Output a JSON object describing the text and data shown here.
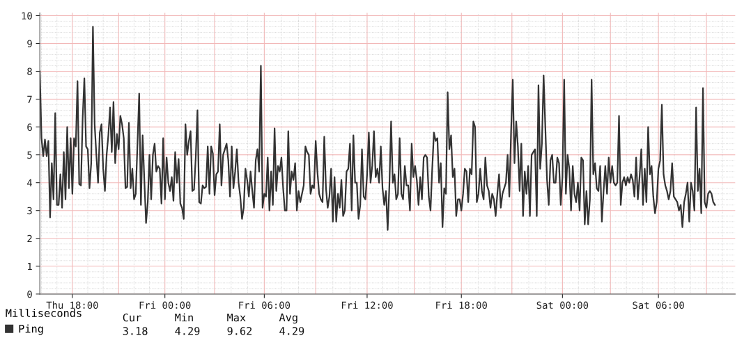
{
  "chart_data": {
    "type": "line",
    "legend_title": "Milliseconds",
    "categories": [
      null,
      null,
      null,
      null,
      null,
      null,
      null,
      null,
      null,
      null,
      null,
      null,
      null,
      null,
      null,
      null,
      null,
      null,
      null,
      "Thu 18:00",
      null,
      null,
      null,
      null,
      null,
      null,
      null,
      null,
      null,
      null,
      null,
      null,
      null,
      null,
      null,
      null,
      null,
      null,
      null,
      null,
      null,
      null,
      null,
      null,
      null,
      null,
      null,
      null,
      null,
      null,
      null,
      null,
      null,
      null,
      null,
      null,
      null,
      null,
      null,
      null,
      null,
      null,
      null,
      null,
      null,
      null,
      null,
      null,
      null,
      null,
      null,
      null,
      null,
      "Fri 00:00",
      null,
      null,
      null,
      null,
      null,
      null,
      null,
      null,
      null,
      null,
      null,
      null,
      null,
      null,
      null,
      null,
      null,
      null,
      null,
      null,
      null,
      null,
      null,
      null,
      null,
      null,
      null,
      null,
      null,
      null,
      null,
      null,
      null,
      null,
      null,
      null,
      null,
      null,
      null,
      null,
      null,
      null,
      null,
      null,
      null,
      null,
      null,
      null,
      null,
      null,
      null,
      null,
      null,
      null,
      null,
      null,
      null,
      "Fri 06:00",
      null,
      null,
      null,
      null,
      null,
      null,
      null,
      null,
      null,
      null,
      null,
      null,
      null,
      null,
      null,
      null,
      null,
      null,
      null,
      null,
      null,
      null,
      null,
      null,
      null,
      null,
      null,
      null,
      null,
      null,
      null,
      null,
      null,
      null,
      null,
      null,
      null,
      null,
      null,
      null,
      null,
      null,
      null,
      null,
      null,
      null,
      null,
      null,
      null,
      null,
      null,
      null,
      null,
      null,
      null,
      null,
      null,
      null,
      null,
      "Fri 12:00",
      null,
      null,
      null,
      null,
      null,
      null,
      null,
      null,
      null,
      null,
      null,
      null,
      null,
      null,
      null,
      null,
      null,
      null,
      null,
      null,
      null,
      null,
      null,
      null,
      null,
      null,
      null,
      null,
      null,
      null,
      null,
      null,
      null,
      null,
      null,
      null,
      null,
      null,
      null,
      null,
      null,
      null,
      null,
      null,
      null,
      null,
      null,
      null,
      null,
      null,
      null,
      null,
      null,
      null,
      "Fri 18:00",
      null,
      null,
      null,
      null,
      null,
      null,
      null,
      null,
      null,
      null,
      null,
      null,
      null,
      null,
      null,
      null,
      null,
      null,
      null,
      null,
      null,
      null,
      null,
      null,
      null,
      null,
      null,
      null,
      null,
      null,
      null,
      null,
      null,
      null,
      null,
      null,
      null,
      null,
      null,
      null,
      null,
      null,
      null,
      null,
      null,
      null,
      null,
      null,
      null,
      null,
      null,
      null,
      null,
      null,
      null,
      null,
      null,
      null,
      "Sat 00:00",
      null,
      null,
      null,
      null,
      null,
      null,
      null,
      null,
      null,
      null,
      null,
      null,
      null,
      null,
      null,
      null,
      null,
      null,
      null,
      null,
      null,
      null,
      null,
      null,
      null,
      null,
      null,
      null,
      null,
      null,
      null,
      null,
      null,
      null,
      null,
      null,
      null,
      null,
      null,
      null,
      null,
      null,
      null,
      null,
      null,
      null,
      null,
      null,
      null,
      null,
      null,
      null,
      null,
      null,
      null,
      "Sat 06:00",
      null,
      null,
      null,
      null,
      null,
      null,
      null,
      null,
      null,
      null,
      null,
      null,
      null,
      null,
      null,
      null,
      null,
      null,
      null,
      null,
      null,
      null,
      null,
      null,
      null,
      null,
      null,
      null,
      null,
      null,
      null,
      null,
      null
    ],
    "series": [
      {
        "name": "Ping",
        "color": "#333333",
        "values": [
          8.0,
          5.6,
          4.95,
          5.55,
          4.95,
          5.5,
          2.75,
          4.7,
          3.4,
          6.5,
          3.2,
          3.2,
          4.3,
          3.1,
          5.1,
          3.4,
          6.0,
          3.8,
          5.6,
          3.6,
          5.6,
          5.3,
          7.65,
          3.95,
          3.9,
          6.3,
          7.75,
          5.3,
          5.2,
          3.8,
          4.7,
          9.6,
          6.1,
          5.0,
          4.0,
          5.8,
          6.1,
          4.5,
          3.7,
          5.0,
          5.7,
          6.7,
          5.1,
          6.9,
          4.7,
          5.75,
          5.2,
          6.4,
          6.1,
          5.6,
          3.8,
          3.85,
          6.15,
          3.8,
          4.5,
          3.4,
          3.6,
          5.4,
          7.2,
          3.2,
          5.7,
          4.1,
          2.55,
          3.3,
          5.0,
          3.4,
          5.0,
          5.4,
          4.4,
          4.6,
          4.5,
          3.25,
          5.6,
          3.4,
          4.9,
          4.0,
          3.7,
          4.2,
          3.35,
          5.1,
          4.0,
          4.85,
          3.25,
          3.1,
          2.7,
          6.1,
          5.0,
          5.5,
          5.85,
          3.7,
          3.75,
          4.9,
          6.6,
          3.3,
          3.25,
          3.9,
          3.8,
          3.85,
          5.3,
          3.6,
          5.3,
          5.05,
          3.55,
          4.3,
          4.4,
          6.1,
          3.9,
          5.0,
          5.2,
          5.4,
          4.8,
          3.5,
          5.3,
          3.8,
          4.4,
          5.2,
          4.0,
          3.5,
          2.7,
          3.1,
          4.5,
          4.1,
          3.5,
          4.4,
          3.7,
          3.1,
          4.8,
          5.2,
          4.4,
          8.2,
          3.1,
          3.6,
          3.5,
          4.9,
          3.0,
          4.4,
          3.2,
          5.95,
          3.7,
          4.6,
          4.4,
          4.9,
          3.8,
          3.0,
          3.0,
          5.85,
          3.6,
          4.4,
          4.1,
          4.7,
          3.0,
          3.7,
          3.3,
          3.6,
          3.9,
          5.3,
          5.1,
          5.0,
          3.6,
          3.9,
          3.8,
          5.5,
          4.4,
          3.6,
          3.4,
          3.3,
          5.65,
          3.8,
          3.1,
          3.5,
          4.5,
          2.6,
          4.2,
          2.6,
          3.6,
          3.1,
          4.1,
          2.8,
          3.0,
          4.4,
          4.5,
          5.4,
          3.0,
          5.7,
          4.0,
          4.0,
          2.7,
          3.2,
          5.2,
          3.5,
          3.4,
          4.3,
          5.8,
          4.0,
          4.6,
          5.85,
          4.2,
          4.5,
          4.0,
          5.3,
          3.8,
          3.2,
          3.7,
          2.3,
          3.9,
          6.2,
          4.0,
          4.3,
          3.4,
          3.6,
          5.6,
          3.6,
          3.4,
          4.6,
          3.9,
          3.9,
          3.0,
          5.4,
          4.2,
          4.6,
          4.1,
          3.2,
          4.2,
          3.4,
          4.9,
          5.0,
          4.9,
          3.5,
          3.0,
          4.5,
          5.8,
          5.5,
          5.6,
          4.0,
          4.7,
          2.4,
          3.8,
          3.6,
          7.25,
          5.2,
          5.7,
          4.2,
          4.5,
          2.8,
          3.4,
          3.4,
          3.0,
          3.6,
          4.5,
          4.4,
          3.3,
          4.5,
          4.3,
          6.2,
          6.0,
          3.3,
          3.6,
          4.5,
          3.7,
          3.4,
          4.9,
          3.9,
          3.7,
          3.1,
          3.6,
          3.4,
          2.8,
          3.6,
          4.3,
          3.1,
          3.6,
          3.8,
          4.0,
          5.0,
          3.5,
          5.8,
          7.7,
          4.7,
          6.2,
          5.3,
          3.7,
          5.4,
          2.8,
          4.4,
          3.6,
          4.6,
          2.8,
          5.0,
          5.1,
          5.2,
          2.8,
          7.5,
          4.5,
          5.4,
          7.85,
          6.0,
          4.1,
          3.2,
          4.8,
          5.0,
          4.0,
          4.0,
          4.9,
          4.7,
          3.2,
          4.2,
          7.7,
          3.6,
          5.0,
          4.5,
          3.0,
          4.6,
          3.6,
          3.3,
          4.0,
          3.0,
          4.9,
          4.8,
          2.5,
          3.7,
          2.5,
          3.4,
          7.7,
          4.3,
          4.7,
          3.8,
          3.7,
          4.6,
          2.6,
          3.7,
          4.6,
          3.6,
          4.9,
          4.0,
          4.6,
          4.0,
          3.9,
          4.0,
          6.4,
          3.2,
          4.0,
          4.2,
          3.9,
          4.2,
          4.0,
          4.3,
          4.1,
          3.5,
          4.9,
          3.4,
          4.2,
          5.2,
          3.2,
          4.5,
          3.3,
          6.0,
          4.3,
          4.6,
          3.5,
          2.9,
          3.3,
          4.5,
          4.8,
          6.8,
          4.3,
          3.9,
          3.7,
          3.4,
          3.7,
          4.7,
          3.5,
          3.4,
          3.3,
          3.0,
          3.2,
          2.4,
          3.3,
          3.6,
          4.0,
          2.6,
          4.0,
          3.7,
          3.0,
          6.7,
          3.7,
          4.5,
          2.9,
          7.4,
          3.3,
          3.1,
          3.6,
          3.7,
          3.6,
          3.3,
          3.2
        ]
      }
    ],
    "ylim": [
      0,
      10.1
    ],
    "yticks": [
      0,
      1,
      2,
      3,
      4,
      5,
      6,
      7,
      8,
      9,
      10
    ],
    "grid": true,
    "legend": "bottom left",
    "line_style": "solid",
    "annotations": [
      "Cur",
      "Min",
      "Max",
      "Avg",
      "3.18",
      "4.29",
      "9.62",
      "4.29"
    ]
  }
}
